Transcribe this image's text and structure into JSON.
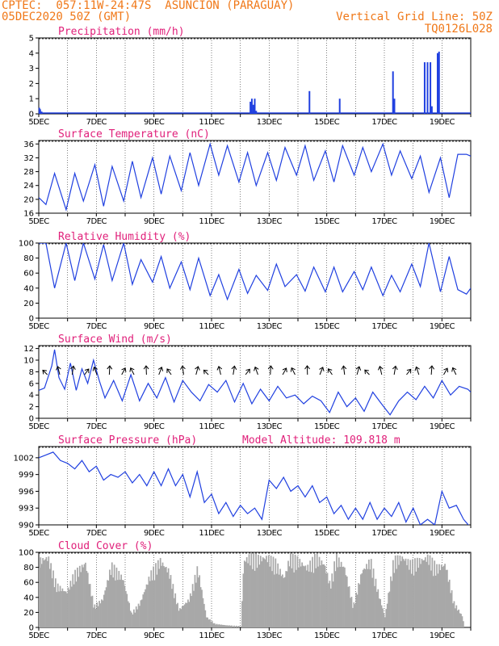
{
  "header": {
    "line1": "CPTEC:  057:11W-24:47S  ASUNCION (PARAGUAY)",
    "line2_left": "05DEC2020 50Z (GMT)",
    "line2_right": "Vertical Grid Line: 50Z",
    "line3_right": "TQ0126L028"
  },
  "colors": {
    "header": "#f07818",
    "title": "#e0207a",
    "series": "#2040e0",
    "cloud": "#a8a8a8"
  },
  "x_tick_labels": [
    "5DEC",
    "7DEC",
    "9DEC",
    "11DEC",
    "13DEC",
    "15DEC",
    "17DEC",
    "19DEC"
  ],
  "chart_data": [
    {
      "type": "bar",
      "title": "Precipitation (mm/h)",
      "ylim": [
        0,
        5
      ],
      "yticks": [
        0,
        1,
        2,
        3,
        4,
        5
      ],
      "x": [
        5.02,
        5.05,
        5.1,
        12.35,
        12.4,
        12.45,
        12.5,
        12.55,
        14.4,
        15.45,
        17.3,
        17.35,
        18.4,
        18.5,
        18.6,
        18.65,
        18.85,
        18.9
      ],
      "values": [
        0.4,
        0.3,
        0.15,
        0.8,
        1.0,
        0.6,
        1.0,
        0.2,
        1.5,
        1.0,
        2.8,
        1.0,
        3.4,
        3.4,
        3.4,
        0.5,
        4.0,
        4.1
      ]
    },
    {
      "type": "line",
      "title": "Surface Temperature (nC)",
      "ylim": [
        16,
        37
      ],
      "yticks": [
        16,
        20,
        24,
        28,
        32,
        36
      ],
      "x": [
        5.0,
        5.25,
        5.55,
        5.95,
        6.25,
        6.55,
        6.95,
        7.25,
        7.55,
        7.95,
        8.25,
        8.55,
        8.95,
        9.25,
        9.55,
        9.95,
        10.25,
        10.55,
        10.95,
        11.25,
        11.55,
        11.95,
        12.25,
        12.55,
        12.95,
        13.25,
        13.55,
        13.95,
        14.25,
        14.55,
        14.95,
        15.25,
        15.55,
        15.95,
        16.25,
        16.55,
        16.95,
        17.25,
        17.55,
        17.95,
        18.25,
        18.55,
        18.95,
        19.25,
        19.55,
        19.85,
        20.0
      ],
      "values": [
        20.5,
        18.5,
        27.5,
        17.0,
        27.5,
        19.5,
        30.0,
        18.0,
        29.5,
        19.5,
        31.0,
        20.5,
        32.0,
        21.5,
        32.5,
        22.5,
        33.5,
        24.0,
        36.0,
        27.0,
        35.5,
        25.0,
        33.5,
        24.0,
        33.5,
        25.5,
        35.0,
        27.0,
        35.5,
        25.5,
        34.0,
        25.0,
        35.5,
        27.0,
        35.0,
        28.0,
        36.0,
        27.0,
        34.0,
        26.0,
        32.5,
        22.0,
        32.0,
        20.5,
        33.0,
        33.0,
        32.5
      ]
    },
    {
      "type": "line",
      "title": "Relative Humidity (%)",
      "ylim": [
        0,
        100
      ],
      "yticks": [
        0,
        20,
        40,
        60,
        80,
        100
      ],
      "x": [
        5.0,
        5.25,
        5.55,
        5.95,
        6.25,
        6.55,
        6.95,
        7.25,
        7.55,
        7.95,
        8.25,
        8.55,
        8.95,
        9.25,
        9.55,
        9.95,
        10.25,
        10.55,
        10.95,
        11.25,
        11.55,
        11.95,
        12.25,
        12.55,
        12.95,
        13.25,
        13.55,
        13.95,
        14.25,
        14.55,
        14.95,
        15.25,
        15.55,
        15.95,
        16.25,
        16.55,
        16.95,
        17.25,
        17.55,
        17.95,
        18.25,
        18.55,
        18.95,
        19.25,
        19.55,
        19.85,
        20.0
      ],
      "values": [
        100,
        100,
        40,
        100,
        50,
        100,
        52,
        98,
        50,
        100,
        45,
        78,
        48,
        82,
        40,
        75,
        38,
        80,
        30,
        58,
        25,
        65,
        33,
        57,
        37,
        72,
        42,
        58,
        36,
        68,
        35,
        68,
        35,
        62,
        38,
        68,
        30,
        57,
        35,
        72,
        42,
        100,
        35,
        82,
        38,
        32,
        40
      ]
    },
    {
      "type": "line",
      "title": "Surface Wind (m/s)",
      "ylim": [
        0,
        12.5
      ],
      "yticks": [
        0,
        2,
        4,
        6,
        8,
        10,
        12
      ],
      "x": [
        5.0,
        5.2,
        5.45,
        5.55,
        5.7,
        5.9,
        6.1,
        6.3,
        6.5,
        6.7,
        6.9,
        7.1,
        7.3,
        7.6,
        7.9,
        8.2,
        8.5,
        8.8,
        9.1,
        9.4,
        9.7,
        10.0,
        10.3,
        10.6,
        10.9,
        11.2,
        11.5,
        11.8,
        12.1,
        12.4,
        12.7,
        13.0,
        13.3,
        13.6,
        13.9,
        14.2,
        14.5,
        14.8,
        15.1,
        15.4,
        15.7,
        16.0,
        16.3,
        16.6,
        16.9,
        17.2,
        17.5,
        17.8,
        18.1,
        18.4,
        18.7,
        19.0,
        19.3,
        19.6,
        19.9,
        20.0
      ],
      "values": [
        4.8,
        5.2,
        9.0,
        11.8,
        7.0,
        5.0,
        9.5,
        4.8,
        8.5,
        6.0,
        10.0,
        6.5,
        3.5,
        6.5,
        3.0,
        7.5,
        3.0,
        6.0,
        3.5,
        7.0,
        2.8,
        6.5,
        4.5,
        3.0,
        5.8,
        4.5,
        6.5,
        2.8,
        6.0,
        2.5,
        5.0,
        3.0,
        5.5,
        3.5,
        4.0,
        2.5,
        3.8,
        3.0,
        1.0,
        4.5,
        2.0,
        3.5,
        1.2,
        4.5,
        2.5,
        0.6,
        3.0,
        4.5,
        3.2,
        5.5,
        3.5,
        6.5,
        4.0,
        5.5,
        5.0,
        4.5
      ]
    },
    {
      "type": "line",
      "title": "Surface Pressure (hPa)",
      "annotation": "Model Altitude: 109.818 m",
      "ylim": [
        990,
        1004
      ],
      "yticks": [
        990,
        993,
        996,
        999,
        1002
      ],
      "x": [
        5.0,
        5.25,
        5.5,
        5.75,
        6.0,
        6.25,
        6.5,
        6.75,
        7.0,
        7.25,
        7.5,
        7.75,
        8.0,
        8.25,
        8.5,
        8.75,
        9.0,
        9.25,
        9.5,
        9.75,
        10.0,
        10.25,
        10.5,
        10.75,
        11.0,
        11.25,
        11.5,
        11.75,
        12.0,
        12.25,
        12.5,
        12.75,
        13.0,
        13.25,
        13.5,
        13.75,
        14.0,
        14.25,
        14.5,
        14.75,
        15.0,
        15.25,
        15.5,
        15.75,
        16.0,
        16.25,
        16.5,
        16.75,
        17.0,
        17.25,
        17.5,
        17.75,
        18.0,
        18.25,
        18.5,
        18.75,
        19.0,
        19.25,
        19.5,
        19.75,
        20.0
      ],
      "values": [
        1002.0,
        1002.5,
        1003.0,
        1001.5,
        1001.0,
        1000.0,
        1001.5,
        999.5,
        1000.5,
        998.0,
        999.0,
        998.5,
        999.5,
        997.5,
        999.0,
        997.0,
        999.5,
        997.0,
        1000.0,
        997.0,
        999.0,
        995.0,
        999.5,
        994.0,
        995.5,
        992.0,
        994.0,
        991.5,
        993.5,
        992.0,
        993.0,
        991.0,
        998.0,
        996.5,
        998.5,
        996.0,
        997.0,
        995.0,
        997.0,
        994.0,
        995.0,
        992.0,
        993.5,
        991.0,
        993.0,
        991.0,
        994.0,
        991.0,
        993.0,
        991.5,
        994.0,
        990.5,
        993.0,
        990.0,
        991.0,
        990.0,
        996.0,
        993.0,
        993.5,
        991.0,
        989.5
      ]
    },
    {
      "type": "area",
      "title": "Cloud Cover (%)",
      "ylim": [
        0,
        100
      ],
      "yticks": [
        0,
        20,
        40,
        60,
        80,
        100
      ],
      "x": [
        5.0,
        5.3,
        5.6,
        5.95,
        6.2,
        6.6,
        6.9,
        7.2,
        7.5,
        7.9,
        8.2,
        8.5,
        8.85,
        9.2,
        9.5,
        9.85,
        10.2,
        10.5,
        10.8,
        11.1,
        11.5,
        12.0,
        12.1,
        12.3,
        12.6,
        12.9,
        13.2,
        13.5,
        13.7,
        14.0,
        14.3,
        14.6,
        14.9,
        15.1,
        15.3,
        15.6,
        15.9,
        16.2,
        16.5,
        16.8,
        17.0,
        17.3,
        17.6,
        17.9,
        18.2,
        18.5,
        18.8,
        19.1,
        19.4,
        19.7,
        19.75,
        20.0
      ],
      "values": [
        95,
        100,
        60,
        50,
        75,
        92,
        30,
        40,
        88,
        70,
        20,
        35,
        75,
        95,
        80,
        25,
        40,
        85,
        15,
        5,
        3,
        2,
        95,
        100,
        98,
        100,
        92,
        70,
        100,
        95,
        85,
        100,
        90,
        60,
        100,
        85,
        30,
        80,
        95,
        45,
        15,
        95,
        100,
        90,
        95,
        100,
        85,
        90,
        35,
        15,
        0,
        0
      ]
    }
  ]
}
